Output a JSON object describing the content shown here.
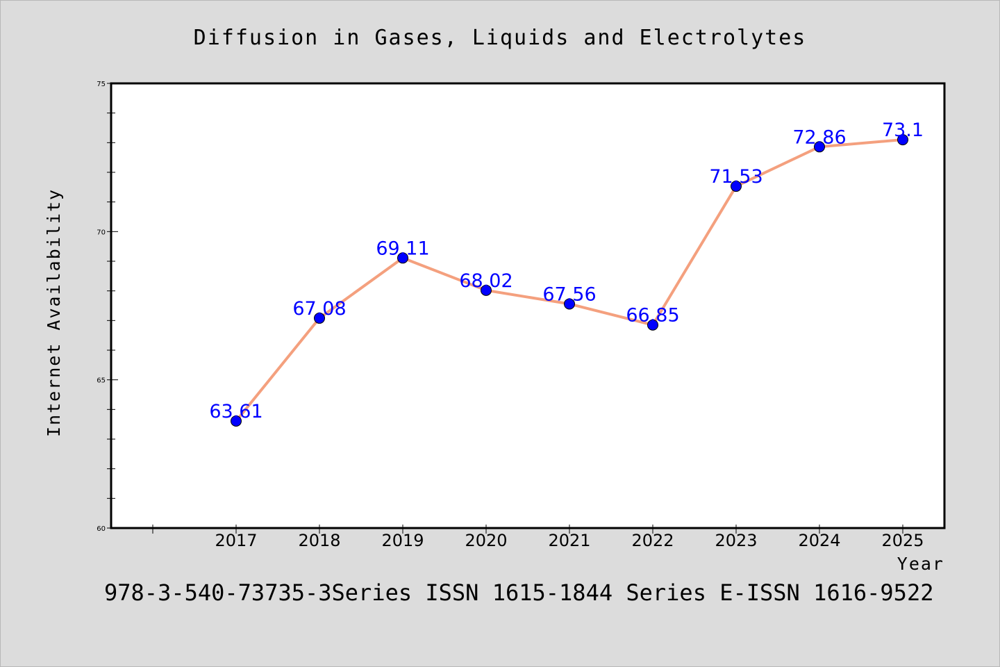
{
  "chart_data": {
    "type": "line",
    "title": "Diffusion in Gases, Liquids and Electrolytes",
    "xlabel": "Year",
    "ylabel": "Internet Availability",
    "categories": [
      "2017",
      "2018",
      "2019",
      "2020",
      "2021",
      "2022",
      "2023",
      "2024",
      "2025"
    ],
    "series": [
      {
        "values": [
          63.61,
          67.08,
          69.11,
          68.02,
          67.56,
          66.85,
          71.53,
          72.86,
          73.1
        ],
        "data_labels": [
          "63.61",
          "67.08",
          "69.11",
          "68.02",
          "67.56",
          "66.85",
          "71.53",
          "72.86",
          "73.1"
        ],
        "line_color": "#f4a07e",
        "marker_color": "#0000ff",
        "label_color": "#0000ff"
      }
    ],
    "ylim": [
      60,
      75
    ],
    "y_major_ticks": [
      60,
      65,
      70,
      75
    ],
    "y_minor_step": 1,
    "grid": false,
    "legend": "none",
    "footer": "978-3-540-73735-3Series ISSN 1615-1844 Series E-ISSN 1616-9522",
    "colors": {
      "background": "#dcdcdc",
      "plot_background": "#ffffff",
      "frame": "#000000"
    }
  }
}
